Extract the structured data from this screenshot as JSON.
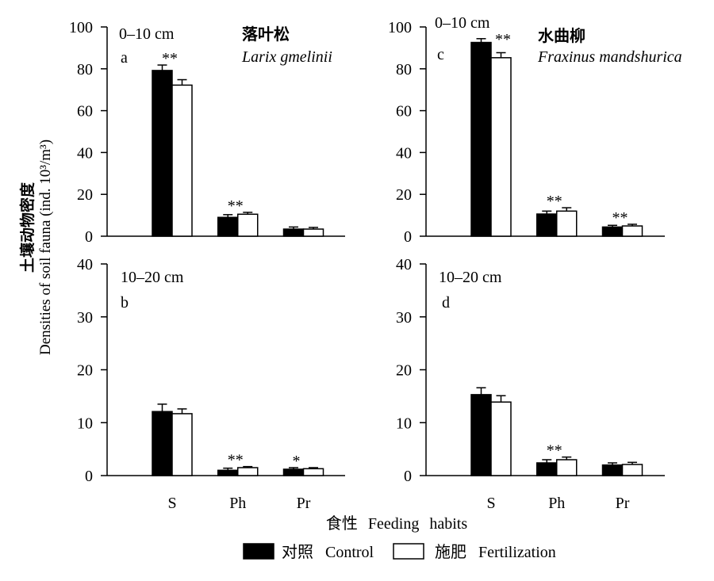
{
  "labels": {
    "ylabel_cn": "土壤动物密度",
    "ylabel_en": "Densities of soil fauna (ind. 10³/m³)",
    "xlabel": "食性 Feeding habits"
  },
  "legend_placement": "bottom",
  "chart_data": [
    {
      "type": "bar",
      "panel": "a",
      "depth": "0–10 cm",
      "species_cn": "落叶松",
      "species_latin": "Larix gmelinii",
      "categories": [
        "S",
        "Ph",
        "Pr"
      ],
      "series": [
        {
          "name": "对照 Control",
          "color": "#000000",
          "values": [
            79.2,
            9.0,
            3.4
          ],
          "errors": [
            2.6,
            1.3,
            1.0
          ]
        },
        {
          "name": "施肥 Fertilization",
          "color": "#ffffff",
          "values": [
            72.2,
            10.5,
            3.4
          ],
          "errors": [
            2.6,
            0.9,
            0.8
          ]
        }
      ],
      "significance": [
        "**",
        "**",
        ""
      ],
      "ylim": [
        0,
        100
      ],
      "yticks": [
        0,
        20,
        40,
        60,
        80,
        100
      ],
      "grid": false
    },
    {
      "type": "bar",
      "panel": "b",
      "depth": "10–20 cm",
      "categories": [
        "S",
        "Ph",
        "Pr"
      ],
      "series": [
        {
          "name": "对照 Control",
          "color": "#000000",
          "values": [
            12.1,
            1.0,
            1.2
          ],
          "errors": [
            1.4,
            0.4,
            0.3
          ]
        },
        {
          "name": "施肥 Fertilization",
          "color": "#ffffff",
          "values": [
            11.7,
            1.5,
            1.3
          ],
          "errors": [
            0.9,
            0.2,
            0.2
          ]
        }
      ],
      "significance": [
        "",
        "**",
        "*"
      ],
      "ylim": [
        0,
        40
      ],
      "yticks": [
        0,
        10,
        20,
        30,
        40
      ],
      "grid": false
    },
    {
      "type": "bar",
      "panel": "c",
      "depth": "0–10 cm",
      "species_cn": "水曲柳",
      "species_latin": "Fraxinus mandshurica",
      "categories": [
        "S",
        "Ph",
        "Pr"
      ],
      "series": [
        {
          "name": "对照 Control",
          "color": "#000000",
          "values": [
            92.6,
            10.6,
            4.4
          ],
          "errors": [
            1.8,
            1.4,
            0.8
          ]
        },
        {
          "name": "施肥 Fertilization",
          "color": "#ffffff",
          "values": [
            85.3,
            12.0,
            4.9
          ],
          "errors": [
            2.4,
            1.6,
            0.8
          ]
        }
      ],
      "significance": [
        "**",
        "**",
        "**"
      ],
      "ylim": [
        0,
        100
      ],
      "yticks": [
        0,
        20,
        40,
        60,
        80,
        100
      ],
      "grid": false
    },
    {
      "type": "bar",
      "panel": "d",
      "depth": "10–20 cm",
      "categories": [
        "S",
        "Ph",
        "Pr"
      ],
      "series": [
        {
          "name": "对照 Control",
          "color": "#000000",
          "values": [
            15.3,
            2.4,
            2.0
          ],
          "errors": [
            1.3,
            0.6,
            0.4
          ]
        },
        {
          "name": "施肥 Fertilization",
          "color": "#ffffff",
          "values": [
            13.9,
            3.0,
            2.1
          ],
          "errors": [
            1.2,
            0.5,
            0.4
          ]
        }
      ],
      "significance": [
        "",
        "**",
        ""
      ],
      "ylim": [
        0,
        40
      ],
      "yticks": [
        0,
        10,
        20,
        30,
        40
      ],
      "grid": false
    }
  ]
}
